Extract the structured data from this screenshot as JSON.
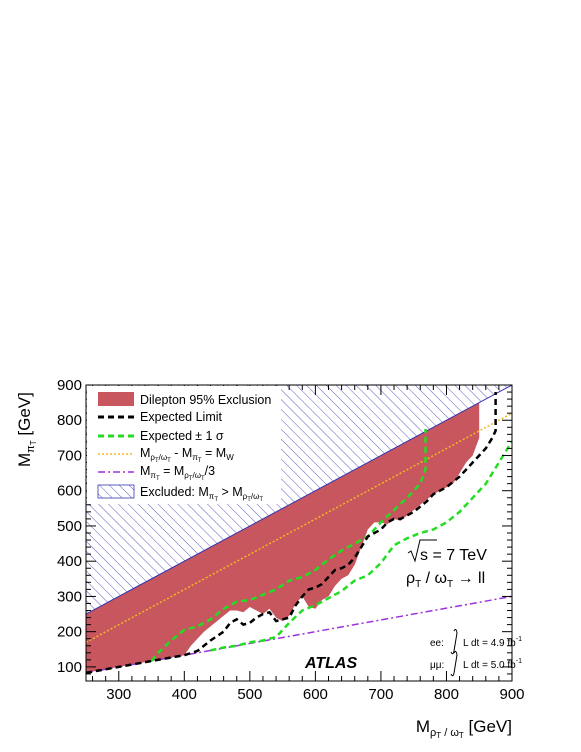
{
  "chart_data": {
    "type": "area",
    "xlabel_main": "M",
    "xlabel_sub": "ρ",
    "xlabel_subsub": "T",
    "xlabel_mid": " / ω",
    "xlabel_mid_sub": "T",
    "xlabel_unit": " [GeV]",
    "ylabel_main": "M",
    "ylabel_sub": "π",
    "ylabel_subsub": "T",
    "ylabel_unit": " [GeV]",
    "xlim": [
      250,
      900
    ],
    "ylim": [
      60,
      900
    ],
    "x_ticks": [
      300,
      400,
      500,
      600,
      700,
      800,
      900
    ],
    "y_ticks": [
      100,
      200,
      300,
      400,
      500,
      600,
      700,
      800,
      900
    ],
    "colors": {
      "exclusion": "#c8565e",
      "expected": "#000000",
      "expected_band": "#22dd22",
      "w_line": "#f2b91e",
      "third_line": "#9b33dd",
      "hatch": "#3434b0"
    },
    "legend": {
      "exclusion": "Dilepton 95% Exclusion",
      "expected": "Expected Limit",
      "band": "Expected ± 1 σ",
      "w_line": "M_ρT/ωT - M_πT = M_W",
      "third_line": "M_πT = M_ρT/ωT /3",
      "excluded": "Excluded: M_πT > M_ρT/ωT",
      "band_prefix": "Expected",
      "band_suffix": "± 1 σ",
      "w_m1": "M",
      "w_s1": "ρ",
      "w_ss1": "T",
      "w_mid1": "/ω",
      "w_ss1b": "T",
      "w_op": " - M",
      "w_s2": "π",
      "w_ss2": "T",
      "w_eq": " = M",
      "w_s3": "W",
      "t_m1": "M",
      "t_s1": "π",
      "t_ss1": "T",
      "t_eq": " = M",
      "t_s2": "ρ",
      "t_ss2": "T",
      "t_mid": "/ω",
      "t_ss2b": "T",
      "t_div": "/3",
      "e_pre": "Excluded: M",
      "e_s1": "π",
      "e_ss1": "T",
      "e_gt": " > M",
      "e_s2": "ρ",
      "e_ss2": "T",
      "e_mid": "/ω",
      "e_ss2b": "T"
    },
    "annotations": {
      "sqrt_s": "s = 7 TeV",
      "process_a": "ρ",
      "process_a_sub": "T",
      "process_b": " / ω",
      "process_b_sub": "T",
      "process_c": " → ll",
      "atlas": "ATLAS",
      "ee_label": "ee:",
      "ee_text": "L dt = 4.9 fb",
      "ee_exp": "-1",
      "mumu_label": "μμ:",
      "mumu_text": "L dt = 5.0 fb",
      "mumu_exp": "-1"
    },
    "w_mass": 80.4,
    "kinematic_limit": {
      "x": [
        250,
        900
      ],
      "y": [
        250,
        900
      ]
    },
    "w_line": {
      "x": [
        250,
        900
      ],
      "y": [
        169.6,
        819.6
      ]
    },
    "third_line": {
      "x": [
        250,
        900
      ],
      "y": [
        83.3,
        300
      ]
    },
    "observed_exclusion": {
      "x": [
        250,
        300,
        350,
        400,
        410,
        420,
        430,
        440,
        450,
        460,
        470,
        480,
        490,
        500,
        510,
        520,
        530,
        540,
        550,
        560,
        570,
        580,
        590,
        600,
        610,
        620,
        630,
        640,
        650,
        660,
        670,
        680,
        690,
        700,
        710,
        720,
        730,
        740,
        750,
        760,
        770,
        780,
        790,
        800,
        810,
        820,
        830,
        840,
        850,
        850
      ],
      "y": [
        83.3,
        100,
        116.7,
        133.3,
        160,
        180,
        200,
        215,
        230,
        245,
        260,
        260,
        255,
        270,
        260,
        250,
        265,
        240,
        230,
        245,
        280,
        300,
        270,
        265,
        290,
        300,
        330,
        350,
        360,
        390,
        440,
        490,
        510,
        510,
        505,
        520,
        515,
        530,
        545,
        560,
        575,
        590,
        600,
        610,
        620,
        650,
        680,
        700,
        750,
        850
      ]
    },
    "expected_limit": {
      "x": [
        250,
        300,
        350,
        400,
        420,
        440,
        460,
        470,
        480,
        490,
        500,
        510,
        520,
        530,
        540,
        550,
        560,
        570,
        580,
        590,
        600,
        610,
        620,
        630,
        640,
        650,
        660,
        670,
        680,
        690,
        700,
        710,
        720,
        730,
        740,
        750,
        760,
        770,
        780,
        790,
        800,
        810,
        820,
        830,
        840,
        850,
        860,
        870,
        875,
        875
      ],
      "y": [
        83.3,
        100,
        116.7,
        133.3,
        145,
        175,
        200,
        225,
        235,
        220,
        225,
        240,
        250,
        255,
        230,
        235,
        240,
        275,
        300,
        320,
        325,
        335,
        355,
        375,
        380,
        390,
        410,
        440,
        470,
        480,
        490,
        510,
        520,
        520,
        530,
        540,
        555,
        570,
        590,
        600,
        610,
        625,
        640,
        660,
        680,
        700,
        720,
        750,
        770,
        880
      ]
    },
    "expected_plus1sigma": {
      "x": [
        350,
        360,
        380,
        400,
        420,
        440,
        460,
        480,
        500,
        520,
        540,
        560,
        580,
        600,
        620,
        640,
        660,
        680,
        700,
        720,
        740,
        760,
        768,
        768
      ],
      "y": [
        116.7,
        140,
        175,
        205,
        215,
        235,
        265,
        285,
        290,
        305,
        320,
        345,
        355,
        375,
        405,
        430,
        450,
        470,
        510,
        545,
        580,
        620,
        660,
        775
      ]
    },
    "expected_minus1sigma": {
      "x": [
        440,
        460,
        480,
        500,
        520,
        540,
        560,
        580,
        600,
        620,
        640,
        660,
        680,
        700,
        720,
        740,
        760,
        780,
        800,
        820,
        840,
        860,
        880,
        900
      ],
      "y": [
        146.7,
        155,
        160,
        170,
        175,
        185,
        225,
        260,
        275,
        295,
        315,
        345,
        360,
        395,
        445,
        465,
        480,
        490,
        510,
        540,
        580,
        620,
        680,
        740
      ]
    }
  }
}
